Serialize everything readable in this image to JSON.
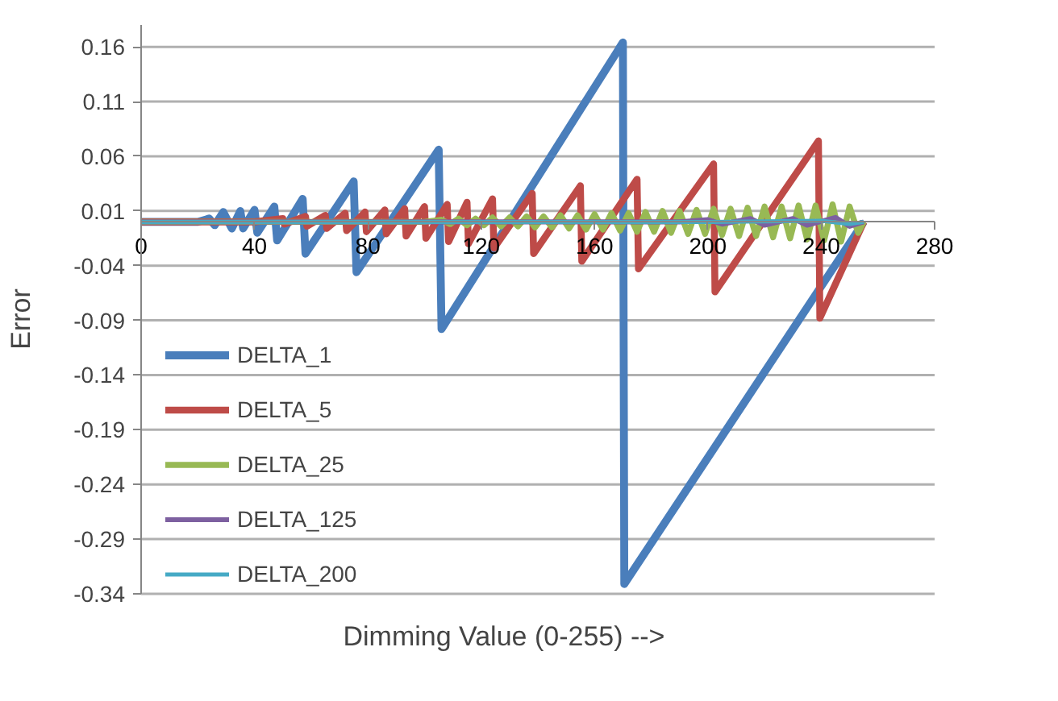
{
  "chart_data": {
    "type": "line",
    "xlabel": "Dimming Value (0-255) -->",
    "ylabel": "Error",
    "xlim": [
      0,
      280
    ],
    "xticks": [
      0,
      40,
      80,
      120,
      160,
      200,
      240,
      280
    ],
    "ylim": [
      -0.34,
      0.18
    ],
    "yticks": [
      -0.34,
      -0.29,
      -0.24,
      -0.19,
      -0.14,
      -0.09,
      -0.04,
      0.01,
      0.06,
      0.11,
      0.16
    ],
    "grid": "y",
    "legend": "bottom left",
    "marker": "none",
    "line_style": "solid",
    "series": [
      {
        "name": "DELTA_1",
        "color": "#4a7ebb",
        "x": [
          0,
          20,
          24,
          26,
          29,
          32,
          35,
          36,
          40,
          41,
          47,
          48,
          57,
          58,
          75,
          76,
          105,
          106,
          170,
          170.5,
          255
        ],
        "values": [
          0,
          0,
          0.003,
          -0.003,
          0.009,
          -0.006,
          0.01,
          -0.006,
          0.011,
          -0.01,
          0.014,
          -0.017,
          0.021,
          -0.029,
          0.037,
          -0.046,
          0.066,
          -0.098,
          0.164,
          -0.331,
          0
        ]
      },
      {
        "name": "DELTA_5",
        "color": "#be4b48",
        "x": [
          0,
          40,
          50,
          50.5,
          58,
          58.5,
          65,
          65.5,
          72,
          72.5,
          79,
          79.5,
          86,
          86.5,
          93,
          93.5,
          100,
          100.5,
          108,
          108.5,
          115,
          115.5,
          124,
          124.5,
          138,
          138.5,
          155,
          155.5,
          175,
          175.5,
          202,
          202.5,
          239,
          239.5,
          255
        ],
        "values": [
          0,
          0,
          0.003,
          -0.002,
          0.005,
          -0.004,
          0.006,
          -0.006,
          0.008,
          -0.008,
          0.009,
          -0.009,
          0.011,
          -0.011,
          0.012,
          -0.013,
          0.014,
          -0.015,
          0.016,
          -0.018,
          0.018,
          -0.02,
          0.021,
          -0.024,
          0.026,
          -0.029,
          0.033,
          -0.036,
          0.039,
          -0.043,
          0.053,
          -0.064,
          0.074,
          -0.088,
          0
        ]
      },
      {
        "name": "DELTA_25",
        "color": "#98b954",
        "x": [
          0,
          100,
          106,
          109,
          112,
          115,
          118,
          121,
          124,
          127,
          130,
          133,
          136,
          139,
          142,
          145,
          148,
          151,
          154,
          157,
          160,
          163,
          166,
          169,
          172,
          175,
          178,
          181,
          184,
          187,
          190,
          193,
          196,
          199,
          202,
          205,
          208,
          211,
          214,
          217,
          220,
          223,
          226,
          229,
          232,
          235,
          238,
          241,
          244,
          247,
          250,
          253,
          255
        ],
        "values": [
          0,
          0,
          0.002,
          -0.002,
          0.003,
          -0.003,
          0.003,
          -0.003,
          0.004,
          -0.004,
          0.004,
          -0.004,
          0.005,
          -0.005,
          0.005,
          -0.005,
          0.006,
          -0.006,
          0.006,
          -0.007,
          0.007,
          -0.007,
          0.008,
          -0.008,
          0.008,
          -0.009,
          0.009,
          -0.009,
          0.01,
          -0.01,
          0.01,
          -0.011,
          0.011,
          -0.011,
          0.012,
          -0.012,
          0.012,
          -0.013,
          0.013,
          -0.013,
          0.014,
          -0.014,
          0.014,
          -0.015,
          0.015,
          -0.016,
          0.015,
          -0.017,
          0.016,
          -0.018,
          0.014,
          -0.01,
          0
        ]
      },
      {
        "name": "DELTA_125",
        "color": "#7d60a0",
        "x": [
          0,
          190,
          200,
          205,
          215,
          220,
          230,
          235,
          245,
          250,
          255
        ],
        "values": [
          0,
          0,
          0.002,
          -0.002,
          0.003,
          -0.003,
          0.003,
          -0.003,
          0.004,
          -0.004,
          0
        ]
      },
      {
        "name": "DELTA_200",
        "color": "#46aac5",
        "x": [
          0,
          200,
          240,
          250,
          255
        ],
        "values": [
          0,
          0,
          0.001,
          -0.002,
          0
        ]
      }
    ]
  }
}
